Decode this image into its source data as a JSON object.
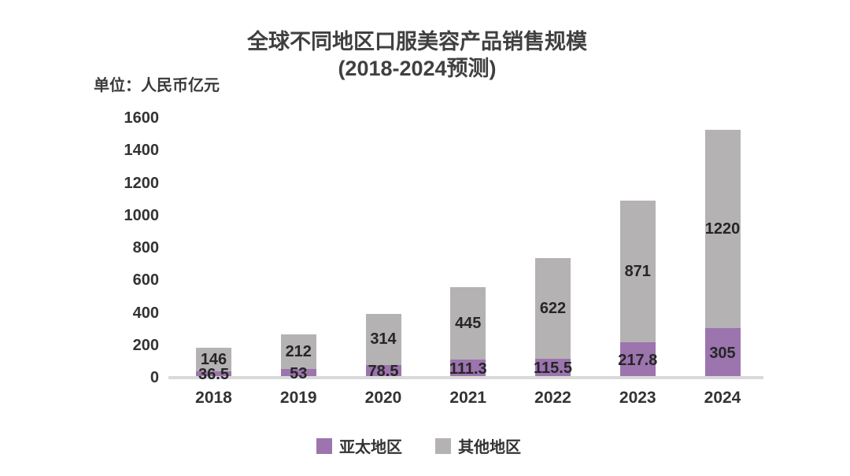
{
  "title": {
    "line1": "全球不同地区口服美容产品销售规模",
    "line2": "(2018-2024预测)"
  },
  "unit_label": "单位：人民币亿元",
  "colors": {
    "apac_purple": "#9c74ae",
    "others_gray": "#b5b2b3",
    "axis_line": "#d9d9d9",
    "title_text": "#404040",
    "label_text": "#262626",
    "background": "#ffffff"
  },
  "chart_data": {
    "type": "bar",
    "stacked": true,
    "title": "全球不同地区口服美容产品销售规模 (2018-2024预测)",
    "ylabel": "单位：人民币亿元",
    "xlabel": "",
    "categories": [
      "2018",
      "2019",
      "2020",
      "2021",
      "2022",
      "2023",
      "2024"
    ],
    "series": [
      {
        "key": "apac",
        "name": "亚太地区",
        "color": "#9c74ae",
        "values": [
          36.5,
          53,
          78.5,
          111.3,
          115.5,
          217.8,
          305
        ]
      },
      {
        "key": "others",
        "name": "其他地区",
        "color": "#b5b2b3",
        "values": [
          146,
          212,
          314,
          445,
          622,
          871,
          1220
        ]
      }
    ],
    "ylim": [
      0,
      1600
    ],
    "yticks": [
      0,
      200,
      400,
      600,
      800,
      1000,
      1200,
      1400,
      1600
    ],
    "grid": false,
    "data_labels": true,
    "legend_position": "bottom"
  }
}
